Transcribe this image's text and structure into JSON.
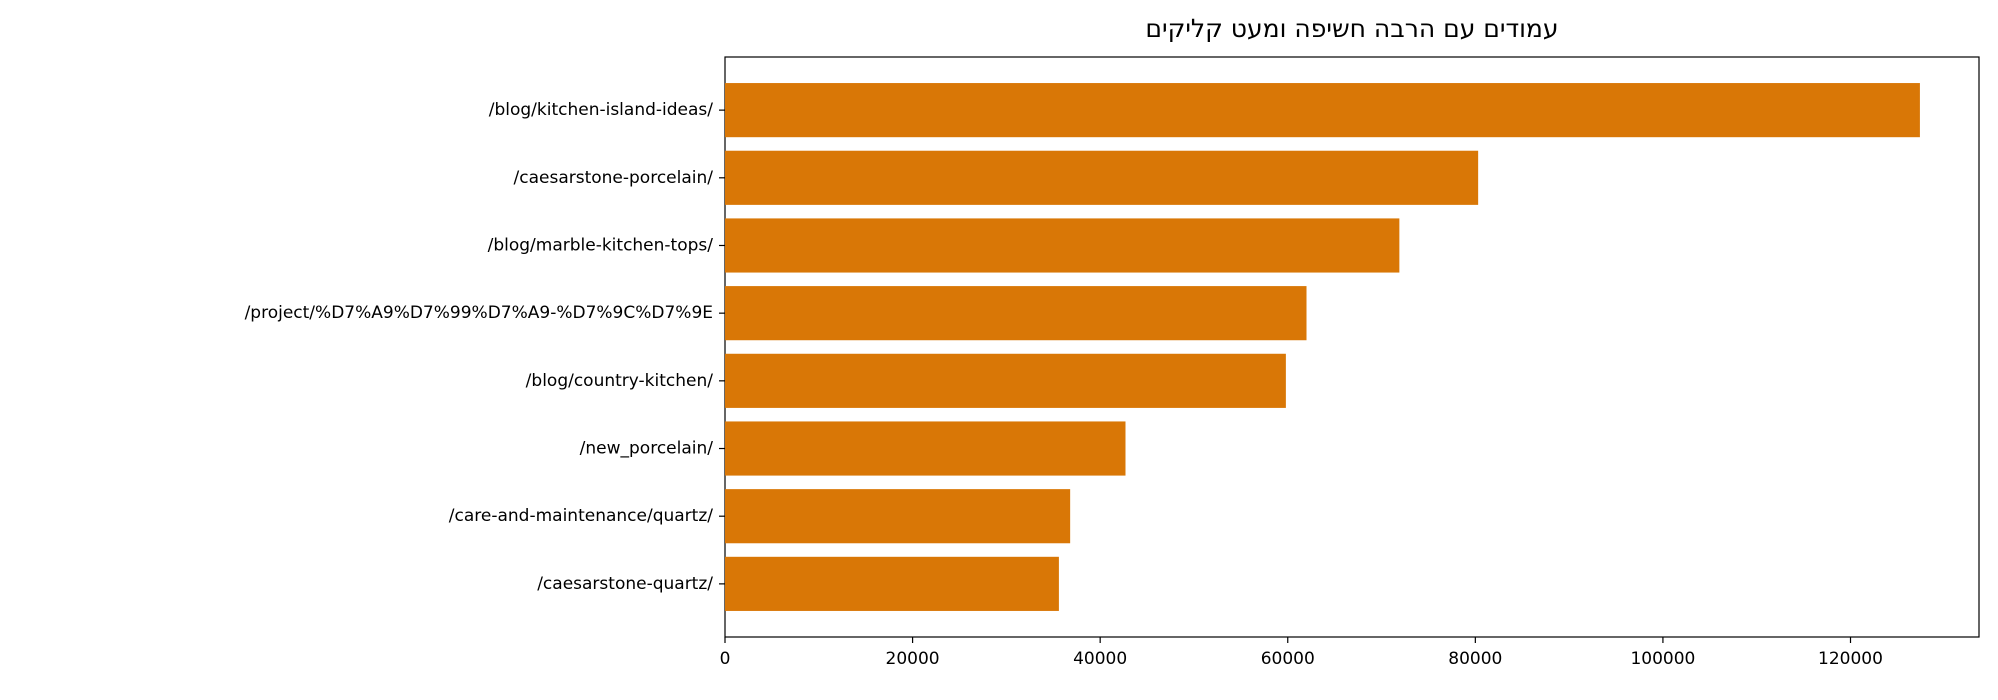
{
  "chart_data": {
    "type": "barh",
    "title": "עמודים עם הרבה חשיפה ומעט קליקים",
    "categories": [
      "/blog/kitchen-island-ideas/",
      "/caesarstone-porcelain/",
      "/blog/marble-kitchen-tops/",
      "/project/%D7%A9%D7%99%D7%A9-%D7%9C%D7%9E",
      "/blog/country-kitchen/",
      "/new_porcelain/",
      "/care-and-maintenance/quartz/",
      "/caesarstone-quartz/"
    ],
    "values": [
      127400,
      80300,
      71900,
      62000,
      59800,
      42700,
      36800,
      35600
    ],
    "color": "#d97706",
    "xlim": [
      0,
      133700
    ],
    "xticks": [
      0,
      20000,
      40000,
      60000,
      80000,
      100000,
      120000
    ],
    "grid": false
  }
}
